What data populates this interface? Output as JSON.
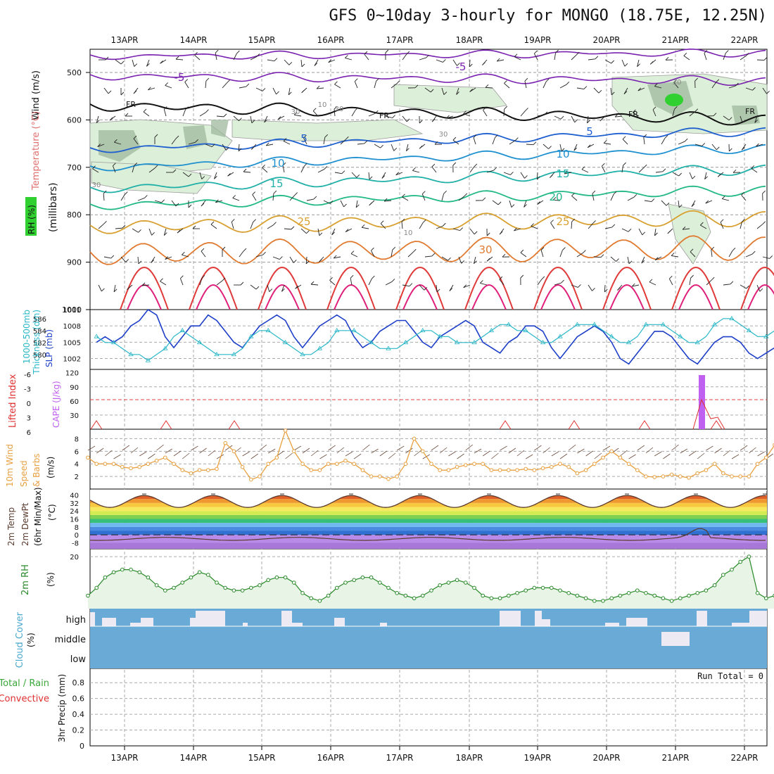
{
  "title": "GFS 0~10day 3-hourly for MONGO (18.75E, 12.25N)",
  "dates": [
    "13APR",
    "14APR",
    "15APR",
    "16APR",
    "17APR",
    "18APR",
    "19APR",
    "20APR",
    "21APR",
    "22APR"
  ],
  "colors": {
    "slp": "#1e3fc8",
    "thickness": "#2bb7c8",
    "cape": "#c060f0",
    "li": "#e03030",
    "wind10": "#e8a040",
    "rh2m": "#2a8a2a",
    "cloud": "#6aaad6",
    "cloud_gap": "#eeeaf4",
    "temp2m": "#5a3b2e",
    "dewpt": "#b77cc0",
    "rh_fill": "#a9d6a2"
  },
  "panels": {
    "upper": {
      "y_label": "(millibars)",
      "left_labels": [
        "Wind (m/s)",
        "Temperature (°C)",
        "RH (%)"
      ],
      "ticks": [
        "500",
        "600",
        "700",
        "800",
        "900",
        "1000"
      ],
      "isotherm_labels": [
        "-5",
        "-5",
        "5",
        "5",
        "10",
        "10",
        "15",
        "15",
        "20",
        "25",
        "25",
        "30",
        "FR",
        "FR",
        "FR",
        "FR"
      ],
      "rh_labels": [
        "30",
        "10",
        "30",
        "30",
        "30",
        "30",
        "10"
      ]
    },
    "slp": {
      "left_labels": [
        "1000-500mb",
        "Thickness (dm)",
        "SLP (mb)"
      ],
      "left_ticks": [
        "586",
        "584",
        "582",
        "580"
      ],
      "right_ticks": [
        "1011",
        "1008",
        "1005",
        "1002"
      ]
    },
    "cape": {
      "left_labels": [
        "Lifted Index",
        "CAPE (J/kg)"
      ],
      "left_ticks": [
        "-6",
        "-3",
        "0",
        "3",
        "6"
      ],
      "right_ticks": [
        "120",
        "90",
        "60",
        "30"
      ]
    },
    "wind10": {
      "left_labels": [
        "10m Wind",
        "Speed",
        "& Barbs",
        "(m/s)"
      ],
      "ticks": [
        "8",
        "6",
        "4",
        "2"
      ]
    },
    "temp2m": {
      "left_labels": [
        "2m Temp",
        "2m DewPt",
        "(6hr Min/Max)",
        "(°C)"
      ],
      "ticks": [
        "40",
        "32",
        "24",
        "16",
        "8",
        "0",
        "-8"
      ]
    },
    "rh2m": {
      "left_labels": [
        "2m RH",
        "(%)"
      ],
      "ticks": [
        "20"
      ]
    },
    "cloud": {
      "left_labels": [
        "Cloud Cover",
        "(%)"
      ],
      "levels": [
        "high",
        "middle",
        "low"
      ]
    },
    "precip": {
      "left_labels": [
        "Total / Rain",
        "Convective",
        "3hr Precip (mm)"
      ],
      "ticks": [
        "0.8",
        "0.6",
        "0.4",
        "0.2",
        "0"
      ],
      "run_total": "Run Total = 0"
    }
  },
  "chart_data": [
    {
      "type": "line",
      "name": "Sea level pressure and 1000-500mb thickness",
      "x_unit": "3-hourly steps from 12APR 12Z",
      "series": [
        {
          "name": "SLP (mb)",
          "values": [
            1005,
            1006,
            1005,
            1006,
            1008,
            1009,
            1011,
            1010,
            1006,
            1004,
            1006,
            1008,
            1008,
            1010,
            1009,
            1007,
            1005,
            1004,
            1006,
            1008,
            1009,
            1010,
            1009,
            1006,
            1004,
            1006,
            1008,
            1009,
            1010,
            1009,
            1006,
            1004,
            1005,
            1007,
            1008,
            1009,
            1009,
            1007,
            1005,
            1004,
            1006,
            1007,
            1008,
            1009,
            1008,
            1005,
            1004,
            1003,
            1005,
            1006,
            1008,
            1008,
            1007,
            1004,
            1002,
            1004,
            1006,
            1007,
            1008,
            1007,
            1005,
            1002,
            1001,
            1003,
            1005,
            1007,
            1007,
            1006,
            1004,
            1002,
            1001,
            1003,
            1005,
            1006,
            1006,
            1005,
            1003,
            1002,
            1003,
            1004,
            1005
          ]
        },
        {
          "name": "1000-500mb thickness (dm)",
          "values": [
            583,
            582,
            582,
            581,
            580,
            580,
            579,
            580,
            581,
            583,
            584,
            583,
            582,
            581,
            580,
            580,
            580,
            581,
            583,
            584,
            584,
            583,
            582,
            581,
            580,
            580,
            581,
            582,
            584,
            584,
            584,
            583,
            582,
            581,
            581,
            581,
            582,
            583,
            584,
            584,
            583,
            583,
            582,
            582,
            582,
            583,
            584,
            585,
            585,
            584,
            584,
            583,
            582,
            582,
            583,
            584,
            585,
            585,
            585,
            584,
            583,
            582,
            582,
            583,
            585,
            585,
            585,
            584,
            583,
            582,
            582,
            583,
            585,
            586,
            586,
            585,
            584,
            583,
            583,
            584,
            583
          ]
        }
      ],
      "ylim_slp": [
        1000,
        1011
      ],
      "ylim_thickness": [
        579,
        587
      ]
    },
    {
      "type": "bar",
      "name": "CAPE and Lifted Index",
      "bars": [
        {
          "date": "21APR 09Z",
          "cape": 115
        }
      ],
      "li_note": "Lifted index mostly near 6 with small dips",
      "li_ylim": [
        -6,
        6
      ],
      "cape_ylim": [
        0,
        120
      ]
    },
    {
      "type": "line",
      "name": "10m wind speed (m/s)",
      "series": [
        {
          "name": "10m Wind Speed",
          "values": [
            5,
            4,
            4,
            4,
            3.5,
            3.3,
            3.5,
            4,
            4.5,
            5,
            4,
            3,
            2.5,
            3,
            3,
            3.2,
            7.3,
            6,
            3.5,
            1.5,
            2,
            4,
            5,
            9.3,
            6,
            4,
            3,
            3,
            4,
            4,
            4.5,
            4,
            3,
            2,
            2,
            1.6,
            2,
            4,
            8,
            6,
            4,
            3,
            3,
            3.5,
            3.8,
            4,
            4,
            3,
            3,
            3,
            3,
            3.2,
            3,
            3.3,
            3.5,
            4,
            3.5,
            2.5,
            3,
            4,
            5,
            6,
            5,
            4,
            3,
            2,
            1.9,
            2,
            2.3,
            2,
            1.8,
            2.5,
            3,
            4,
            2.5,
            2,
            2,
            2,
            4,
            5,
            7,
            3,
            2,
            1.9,
            2
          ]
        }
      ],
      "ylim": [
        0,
        9
      ]
    },
    {
      "type": "line",
      "name": "2m relative humidity",
      "values": [
        5,
        8,
        12,
        14,
        15,
        15,
        14,
        12,
        9,
        7,
        8,
        10,
        12,
        14,
        13,
        10,
        8,
        7,
        7,
        8,
        9,
        11,
        12,
        12,
        10,
        6,
        4,
        3,
        5,
        8,
        10,
        11,
        12,
        12,
        10,
        8,
        6,
        5,
        4,
        5,
        7,
        9,
        10,
        11,
        10,
        8,
        5,
        4,
        4,
        5,
        6,
        7,
        8,
        8,
        8,
        7,
        6,
        5,
        4,
        3,
        3,
        4,
        5,
        6,
        7,
        6,
        5,
        4,
        3,
        4,
        5,
        6,
        7,
        9,
        13,
        15,
        18,
        20,
        6,
        4,
        5,
        7,
        8,
        8,
        6
      ],
      "ylim": [
        0,
        22
      ]
    }
  ]
}
